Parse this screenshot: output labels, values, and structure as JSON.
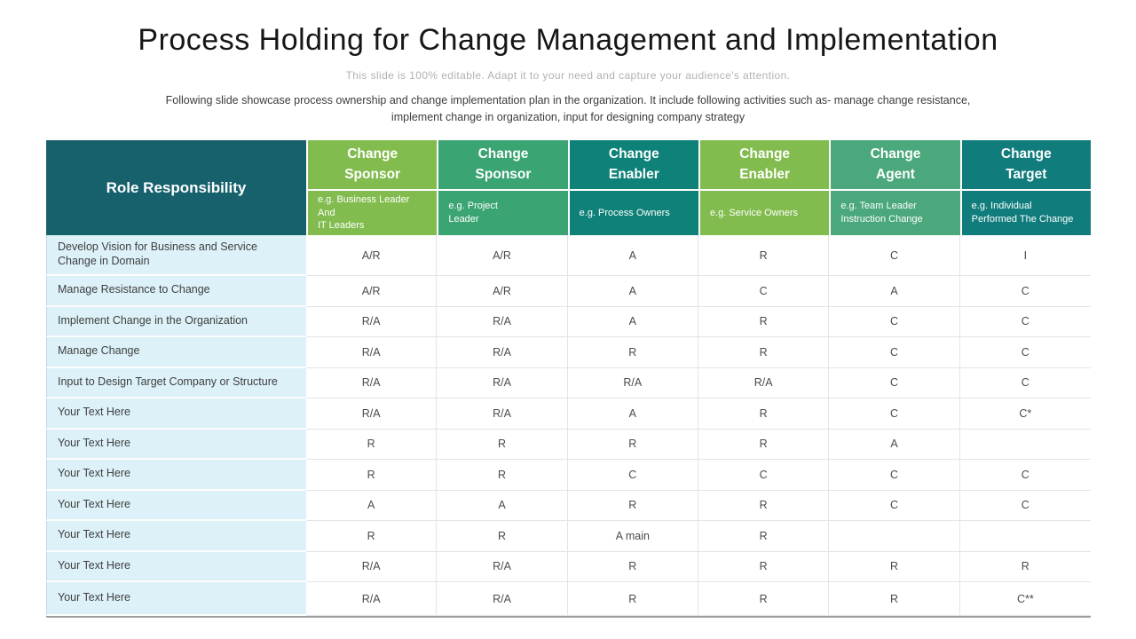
{
  "slide": {
    "title": "Process Holding for Change Management and Implementation",
    "subtitle": "This slide is 100% editable. Adapt it to your need and capture your audience's attention.",
    "description": "Following slide showcase process ownership and change implementation plan in the organization. It include following activities such as- manage change resistance, implement change in organization, input for designing company strategy"
  },
  "table": {
    "row_header_label": "Role Responsibility",
    "colors": {
      "role_header_bg": "#17616d",
      "row_label_bg": "#dcf1f8",
      "header_text": "#ffffff"
    },
    "columns": [
      {
        "title": "Change\nSponsor",
        "subtitle": "e.g. Business Leader\nAnd\nIT Leaders",
        "color": "#82bc4e"
      },
      {
        "title": "Change\nSponsor",
        "subtitle": "e.g. Project\nLeader",
        "color": "#3ba473"
      },
      {
        "title": "Change\nEnabler",
        "subtitle": "e.g. Process Owners",
        "color": "#0e8278"
      },
      {
        "title": "Change\nEnabler",
        "subtitle": "e.g. Service Owners",
        "color": "#82bc4e"
      },
      {
        "title": "Change\nAgent",
        "subtitle": "e.g. Team Leader\nInstruction Change",
        "color": "#4ba87c"
      },
      {
        "title": "Change\nTarget",
        "subtitle": "e.g.  Individual\nPerformed The Change",
        "color": "#107d7c"
      }
    ],
    "rows": [
      {
        "label": "Develop Vision for Business and Service Change in Domain",
        "values": [
          "A/R",
          "A/R",
          "A",
          "R",
          "C",
          "I"
        ]
      },
      {
        "label": "Manage Resistance to Change",
        "values": [
          "A/R",
          "A/R",
          "A",
          "C",
          "A",
          "C"
        ]
      },
      {
        "label": "Implement Change in the Organization",
        "values": [
          "R/A",
          "R/A",
          "A",
          "R",
          "C",
          "C"
        ]
      },
      {
        "label": "Manage Change",
        "values": [
          "R/A",
          "R/A",
          "R",
          "R",
          "C",
          "C"
        ]
      },
      {
        "label": "Input to Design Target Company or Structure",
        "values": [
          "R/A",
          "R/A",
          "R/A",
          "R/A",
          "C",
          "C"
        ]
      },
      {
        "label": "Your Text Here",
        "values": [
          "R/A",
          "R/A",
          "A",
          "R",
          "C",
          "C*"
        ]
      },
      {
        "label": "Your Text Here",
        "values": [
          "R",
          "R",
          "R",
          "R",
          "A",
          ""
        ]
      },
      {
        "label": "Your Text Here",
        "values": [
          "R",
          "R",
          "C",
          "C",
          "C",
          "C"
        ]
      },
      {
        "label": "Your Text Here",
        "values": [
          "A",
          "A",
          "R",
          "R",
          "C",
          "C"
        ]
      },
      {
        "label": "Your Text Here",
        "values": [
          "R",
          "R",
          "A main",
          "R",
          "",
          ""
        ]
      },
      {
        "label": "Your Text Here",
        "values": [
          "R/A",
          "R/A",
          "R",
          "R",
          "R",
          "R"
        ]
      },
      {
        "label": "Your Text Here",
        "values": [
          "R/A",
          "R/A",
          "R",
          "R",
          "R",
          "C**"
        ]
      }
    ]
  }
}
